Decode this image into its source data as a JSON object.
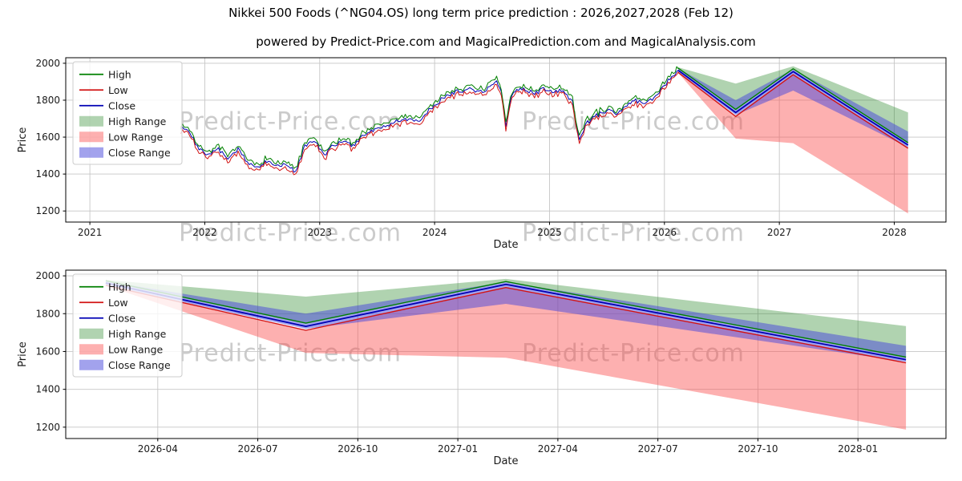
{
  "title": "Nikkei 500 Foods (^NG04.OS) long term price prediction : 2026,2027,2028 (Feb 12)",
  "subtitle": "powered by Predict-Price.com and MagicalPrediction.com and MagicalAnalysis.com",
  "watermark": {
    "text": "Predict-Price.com"
  },
  "colors": {
    "high_line": "#008000",
    "low_line": "#d21414",
    "close_line": "#0000b4",
    "high_range": "rgba(30,130,30,0.35)",
    "low_range": "rgba(250,80,80,0.45)",
    "close_range": "rgba(70,70,220,0.5)",
    "grid": "#c6c6c6",
    "spine": "#000000",
    "tick_label": "#1a1a1a"
  },
  "legend": [
    {
      "label": "High",
      "swatch": "line",
      "color_key": "high_line"
    },
    {
      "label": "Low",
      "swatch": "line",
      "color_key": "low_line"
    },
    {
      "label": "Close",
      "swatch": "line",
      "color_key": "close_line"
    },
    {
      "label": "High Range",
      "swatch": "patch",
      "color_key": "high_range"
    },
    {
      "label": "Low Range",
      "swatch": "patch",
      "color_key": "low_range"
    },
    {
      "label": "Close Range",
      "swatch": "patch",
      "color_key": "close_range"
    }
  ],
  "chart_data": [
    {
      "type": "line",
      "title": "",
      "xlabel": "Date",
      "ylabel": "Price",
      "xlim": [
        2020.79,
        2028.45
      ],
      "ylim": [
        1140,
        2030
      ],
      "yticks": [
        1200,
        1400,
        1600,
        1800,
        2000
      ],
      "xticks": [
        {
          "v": 2021,
          "label": "2021"
        },
        {
          "v": 2022,
          "label": "2022"
        },
        {
          "v": 2023,
          "label": "2023"
        },
        {
          "v": 2024,
          "label": "2024"
        },
        {
          "v": 2025,
          "label": "2025"
        },
        {
          "v": 2026,
          "label": "2026"
        },
        {
          "v": 2027,
          "label": "2027"
        },
        {
          "v": 2028,
          "label": "2028"
        }
      ],
      "historical": {
        "noise": 12,
        "x": [
          2021.79,
          2021.87,
          2021.95,
          2022.04,
          2022.12,
          2022.2,
          2022.29,
          2022.37,
          2022.45,
          2022.54,
          2022.62,
          2022.7,
          2022.79,
          2022.87,
          2022.95,
          2023.04,
          2023.12,
          2023.2,
          2023.29,
          2023.37,
          2023.45,
          2023.54,
          2023.62,
          2023.7,
          2023.79,
          2023.87,
          2023.95,
          2024.04,
          2024.12,
          2024.2,
          2024.29,
          2024.37,
          2024.45,
          2024.54,
          2024.58,
          2024.62,
          2024.66,
          2024.7,
          2024.79,
          2024.87,
          2024.95,
          2025.04,
          2025.12,
          2025.2,
          2025.26,
          2025.33,
          2025.41,
          2025.5,
          2025.58,
          2025.66,
          2025.75,
          2025.83,
          2025.91,
          2026.0,
          2026.08,
          2026.12
        ],
        "close": [
          1655,
          1625,
          1530,
          1505,
          1535,
          1480,
          1540,
          1465,
          1432,
          1470,
          1440,
          1452,
          1412,
          1548,
          1585,
          1495,
          1560,
          1575,
          1555,
          1600,
          1630,
          1655,
          1672,
          1690,
          1705,
          1680,
          1745,
          1795,
          1830,
          1848,
          1860,
          1845,
          1858,
          1905,
          1840,
          1660,
          1800,
          1850,
          1858,
          1835,
          1860,
          1845,
          1852,
          1790,
          1592,
          1680,
          1718,
          1742,
          1730,
          1762,
          1800,
          1780,
          1818,
          1878,
          1940,
          1962
        ]
      },
      "prediction": {
        "x": [
          2026.12,
          2026.62,
          2027.12,
          2028.12
        ],
        "close": [
          1962,
          1733,
          1955,
          1557
        ],
        "high": [
          1974,
          1750,
          1970,
          1570
        ],
        "low": [
          1950,
          1712,
          1938,
          1540
        ],
        "band_high_top": [
          1978,
          1890,
          1984,
          1734
        ],
        "band_low_bottom": [
          1948,
          1592,
          1567,
          1187
        ],
        "band_close_top": [
          1972,
          1800,
          1968,
          1630
        ],
        "band_close_bottom": [
          1950,
          1720,
          1852,
          1545
        ]
      }
    },
    {
      "type": "line",
      "title": "",
      "xlabel": "Date",
      "ylabel": "Price",
      "xlim": [
        2026.02,
        2028.22
      ],
      "ylim": [
        1140,
        2030
      ],
      "yticks": [
        1200,
        1400,
        1600,
        1800,
        2000
      ],
      "xticks": [
        {
          "v": 2026.25,
          "label": "2026-04"
        },
        {
          "v": 2026.5,
          "label": "2026-07"
        },
        {
          "v": 2026.75,
          "label": "2026-10"
        },
        {
          "v": 2027.0,
          "label": "2027-01"
        },
        {
          "v": 2027.25,
          "label": "2027-04"
        },
        {
          "v": 2027.5,
          "label": "2027-07"
        },
        {
          "v": 2027.75,
          "label": "2027-10"
        },
        {
          "v": 2028.0,
          "label": "2028-01"
        }
      ],
      "prediction": {
        "x": [
          2026.12,
          2026.62,
          2027.12,
          2028.12
        ],
        "close": [
          1962,
          1733,
          1955,
          1557
        ],
        "high": [
          1974,
          1750,
          1970,
          1570
        ],
        "low": [
          1950,
          1712,
          1938,
          1540
        ],
        "band_high_top": [
          1978,
          1890,
          1984,
          1734
        ],
        "band_low_bottom": [
          1948,
          1592,
          1567,
          1187
        ],
        "band_close_top": [
          1972,
          1800,
          1968,
          1630
        ],
        "band_close_bottom": [
          1950,
          1720,
          1852,
          1545
        ]
      }
    }
  ]
}
